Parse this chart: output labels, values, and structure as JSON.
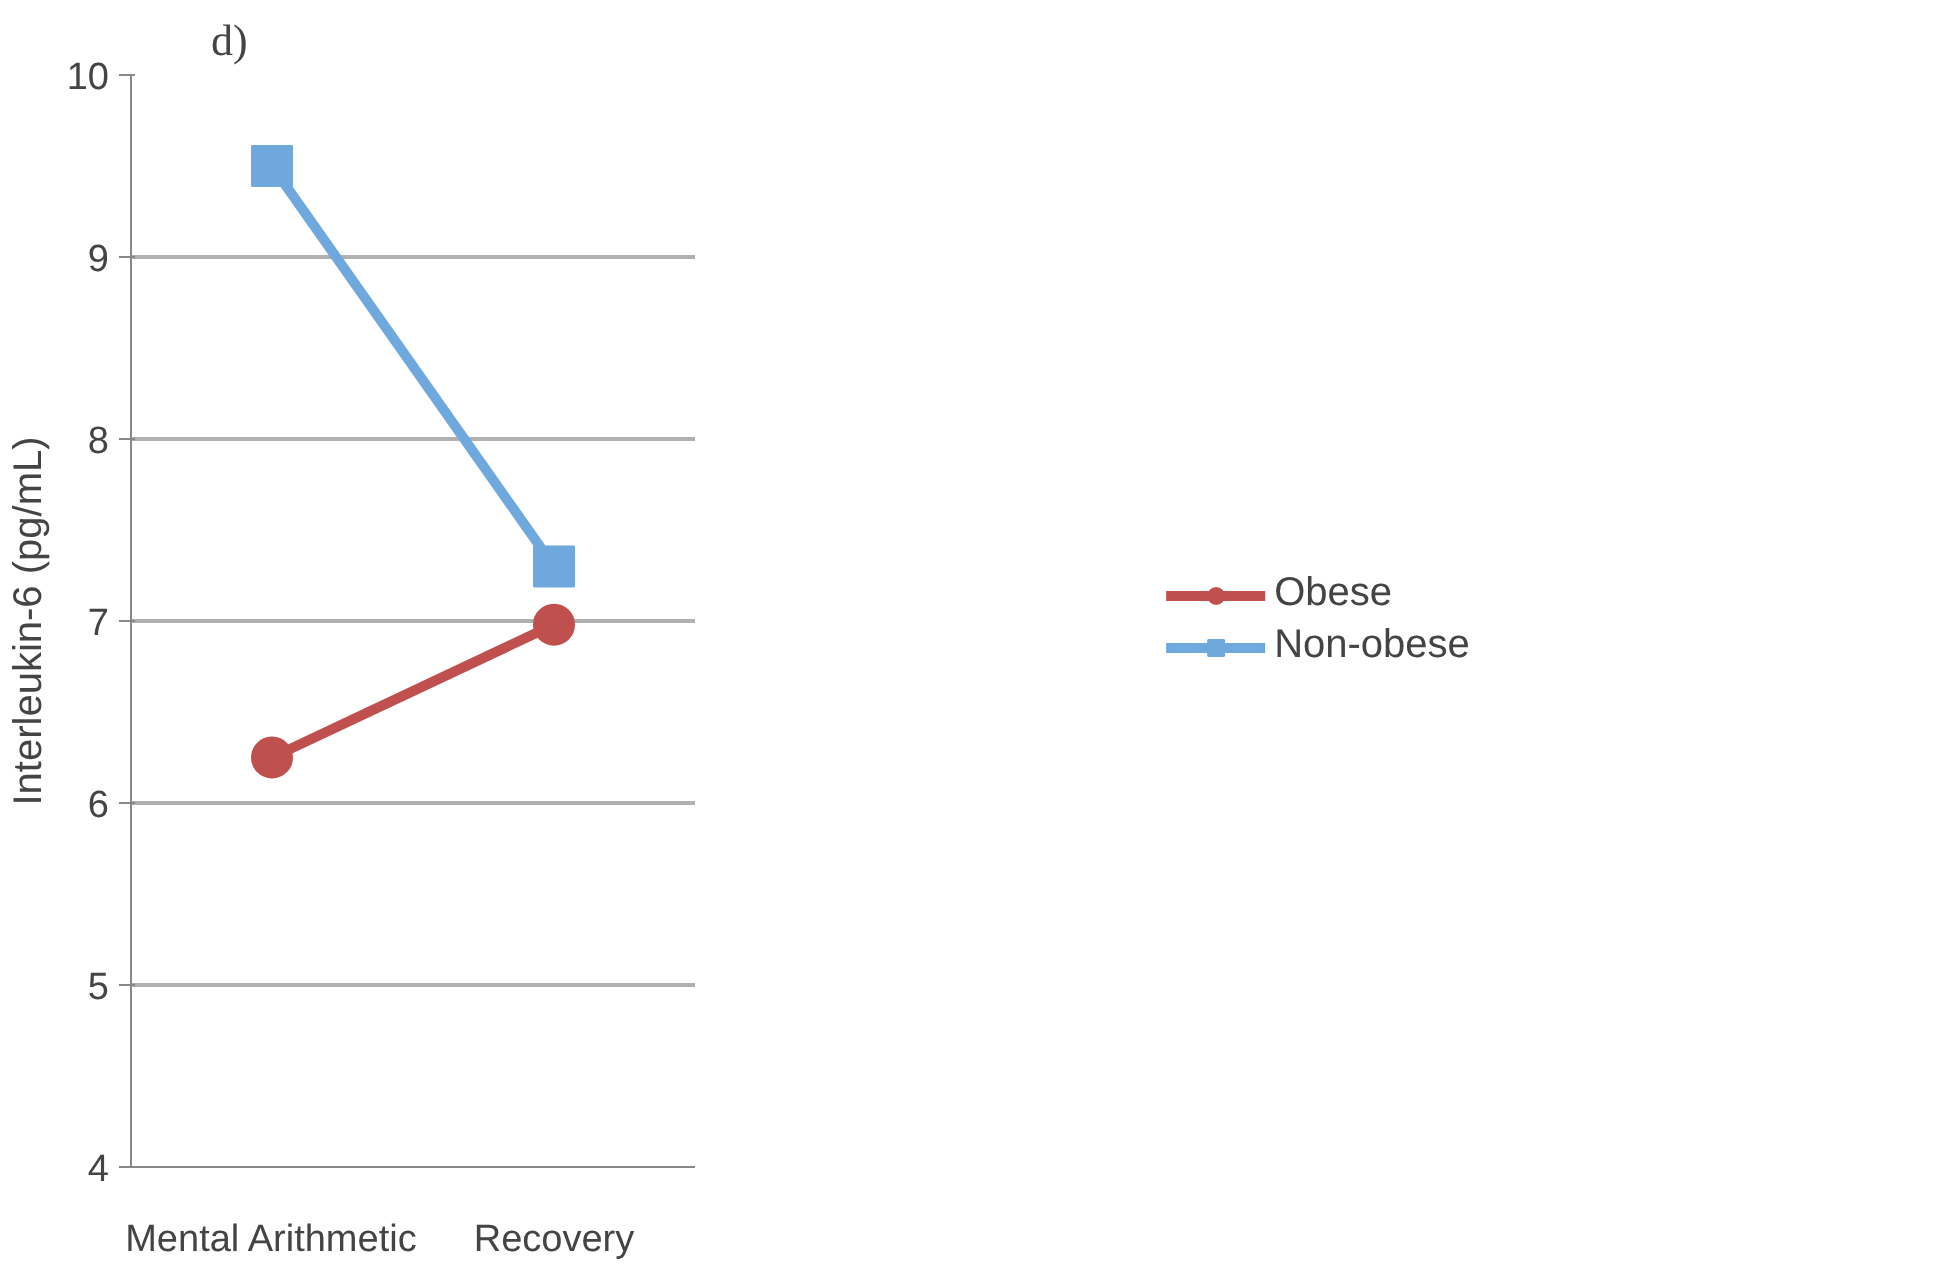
{
  "chart_data": {
    "type": "line",
    "title": "d)",
    "ylabel": "Interleukin-6 (pg/mL)",
    "categories": [
      "Mental Arithmetic",
      "Recovery"
    ],
    "series": [
      {
        "name": "Obese",
        "color": "#c0504d",
        "values": [
          6.25,
          6.98
        ],
        "marker": "circle"
      },
      {
        "name": "Non-obese",
        "color": "#6fa8dc",
        "values": [
          9.5,
          7.3
        ],
        "marker": "square"
      }
    ],
    "ylim": [
      4,
      10
    ],
    "yticks": [
      4,
      5,
      6,
      7,
      8,
      9,
      10
    ],
    "grid": "y",
    "legend": "right",
    "line_style": "solid"
  }
}
